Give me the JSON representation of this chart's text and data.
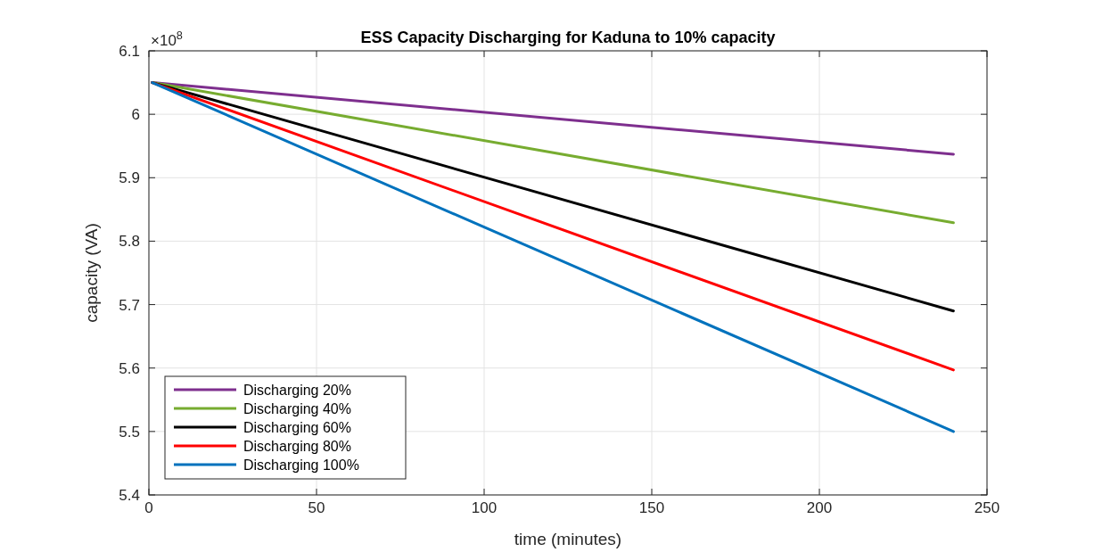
{
  "chart_data": {
    "type": "line",
    "title": "ESS Capacity Discharging for Kaduna  to 10% capacity",
    "xlabel": "time (minutes)",
    "ylabel": "capacity (VA)",
    "annotations": [
      "×10$^{8}$"
    ],
    "x": [
      1,
      240
    ],
    "series": [
      {
        "name": "Discharging 20%",
        "color": "#7e2f8e",
        "values": [
          6.05,
          5.937
        ]
      },
      {
        "name": "Discharging 40%",
        "color": "#77ac30",
        "values": [
          6.05,
          5.829
        ]
      },
      {
        "name": "Discharging 60%",
        "color": "#000000",
        "values": [
          6.05,
          5.69
        ]
      },
      {
        "name": "Discharging 80%",
        "color": "#ff0000",
        "values": [
          6.05,
          5.597
        ]
      },
      {
        "name": "Discharging 100%",
        "color": "#0072bd",
        "values": [
          6.05,
          5.5
        ]
      }
    ],
    "xlim": [
      0,
      250
    ],
    "xticks": [
      0,
      50,
      100,
      150,
      200,
      250
    ],
    "ylim": [
      5.4,
      6.1
    ],
    "yticks": [
      {
        "value": 5.4,
        "label": "5.4"
      },
      {
        "value": 5.5,
        "label": "5.5"
      },
      {
        "value": 5.6,
        "label": "5.6"
      },
      {
        "value": 5.7,
        "label": "5.7"
      },
      {
        "value": 5.8,
        "label": "5.8"
      },
      {
        "value": 5.9,
        "label": "5.9"
      },
      {
        "value": 6,
        "label": "6"
      },
      {
        "value": 6.1,
        "label": "6.1"
      }
    ],
    "grid": true,
    "legend": "bottom left",
    "marker": "none",
    "line_style": "solid"
  }
}
